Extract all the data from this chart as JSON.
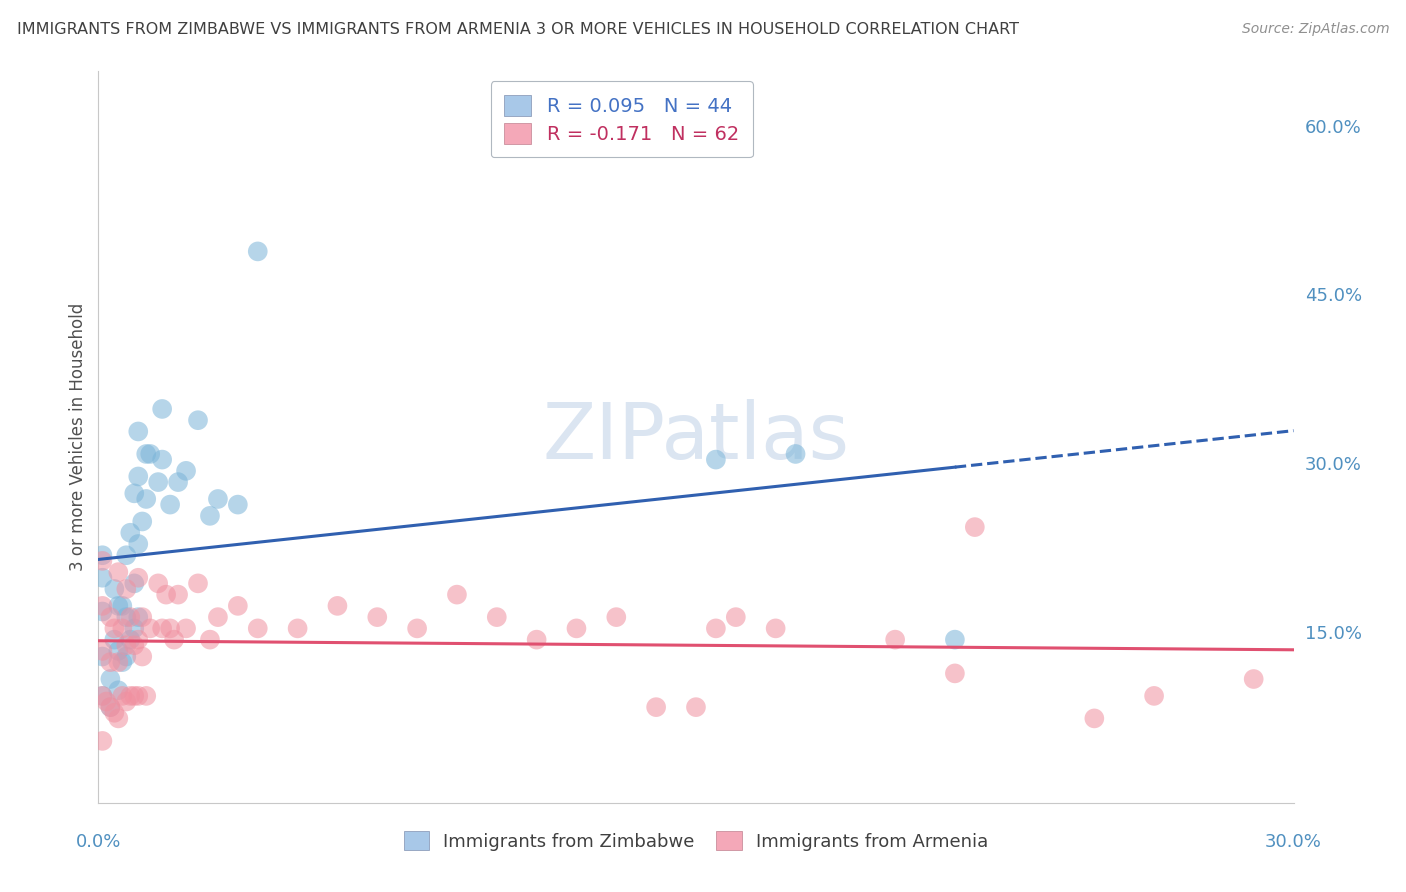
{
  "title": "IMMIGRANTS FROM ZIMBABWE VS IMMIGRANTS FROM ARMENIA 3 OR MORE VEHICLES IN HOUSEHOLD CORRELATION CHART",
  "source": "Source: ZipAtlas.com",
  "ylabel": "3 or more Vehicles in Household",
  "xlim": [
    0.0,
    0.3
  ],
  "ylim": [
    0.0,
    0.65
  ],
  "ytick_labels": [
    "15.0%",
    "30.0%",
    "45.0%",
    "60.0%"
  ],
  "ytick_values": [
    0.15,
    0.3,
    0.45,
    0.6
  ],
  "zimbabwe_color": "#7ab4d8",
  "armenia_color": "#f090a0",
  "zimbabwe_line_color": "#3060b0",
  "armenia_line_color": "#e05070",
  "background_color": "#ffffff",
  "grid_color": "#d8d8d8",
  "title_color": "#404040",
  "axis_label_color": "#505050",
  "tick_color": "#5090c0",
  "watermark_color": "#ccdaec",
  "zimbabwe_x": [
    0.001,
    0.001,
    0.001,
    0.001,
    0.001,
    0.003,
    0.003,
    0.004,
    0.004,
    0.005,
    0.005,
    0.005,
    0.006,
    0.006,
    0.007,
    0.007,
    0.007,
    0.008,
    0.008,
    0.009,
    0.009,
    0.009,
    0.01,
    0.01,
    0.01,
    0.01,
    0.011,
    0.012,
    0.012,
    0.013,
    0.015,
    0.016,
    0.016,
    0.018,
    0.02,
    0.022,
    0.025,
    0.028,
    0.03,
    0.035,
    0.04,
    0.155,
    0.175,
    0.215
  ],
  "zimbabwe_y": [
    0.095,
    0.13,
    0.17,
    0.2,
    0.22,
    0.085,
    0.11,
    0.145,
    0.19,
    0.1,
    0.135,
    0.175,
    0.125,
    0.175,
    0.13,
    0.165,
    0.22,
    0.145,
    0.24,
    0.155,
    0.195,
    0.275,
    0.165,
    0.23,
    0.29,
    0.33,
    0.25,
    0.27,
    0.31,
    0.31,
    0.285,
    0.305,
    0.35,
    0.265,
    0.285,
    0.295,
    0.34,
    0.255,
    0.27,
    0.265,
    0.49,
    0.305,
    0.31,
    0.145
  ],
  "armenia_x": [
    0.001,
    0.001,
    0.001,
    0.001,
    0.001,
    0.002,
    0.003,
    0.003,
    0.003,
    0.004,
    0.004,
    0.005,
    0.005,
    0.005,
    0.006,
    0.006,
    0.007,
    0.007,
    0.007,
    0.008,
    0.008,
    0.009,
    0.009,
    0.01,
    0.01,
    0.01,
    0.011,
    0.011,
    0.012,
    0.013,
    0.015,
    0.016,
    0.017,
    0.018,
    0.019,
    0.02,
    0.022,
    0.025,
    0.028,
    0.03,
    0.035,
    0.04,
    0.05,
    0.06,
    0.07,
    0.08,
    0.09,
    0.1,
    0.11,
    0.12,
    0.13,
    0.14,
    0.15,
    0.155,
    0.16,
    0.17,
    0.2,
    0.215,
    0.22,
    0.25,
    0.265,
    0.29
  ],
  "armenia_y": [
    0.055,
    0.095,
    0.135,
    0.175,
    0.215,
    0.09,
    0.085,
    0.125,
    0.165,
    0.08,
    0.155,
    0.075,
    0.125,
    0.205,
    0.095,
    0.155,
    0.09,
    0.14,
    0.19,
    0.095,
    0.165,
    0.095,
    0.14,
    0.095,
    0.145,
    0.2,
    0.13,
    0.165,
    0.095,
    0.155,
    0.195,
    0.155,
    0.185,
    0.155,
    0.145,
    0.185,
    0.155,
    0.195,
    0.145,
    0.165,
    0.175,
    0.155,
    0.155,
    0.175,
    0.165,
    0.155,
    0.185,
    0.165,
    0.145,
    0.155,
    0.165,
    0.085,
    0.085,
    0.155,
    0.165,
    0.155,
    0.145,
    0.115,
    0.245,
    0.075,
    0.095,
    0.11
  ]
}
